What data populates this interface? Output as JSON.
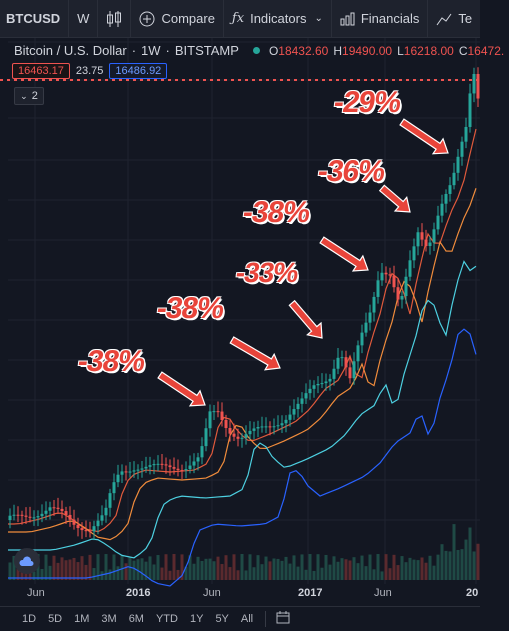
{
  "toolbar": {
    "symbol": "BTCUSD",
    "interval": "W",
    "compare": "Compare",
    "indicators": "Indicators",
    "financials": "Financials",
    "templates": "Te"
  },
  "legend": {
    "name": "Bitcoin / U.S. Dollar",
    "interval": "1W",
    "exchange": "BITSTAMP",
    "open_key": "O",
    "open": "18432.60",
    "high_key": "H",
    "high": "19490.00",
    "low_key": "L",
    "low": "16218.00",
    "close_key": "C",
    "close": "16472."
  },
  "quote": {
    "bid": "16463.17",
    "spread": "23.75",
    "ask": "16486.92"
  },
  "collapse_count": "2",
  "annotations": [
    "-38%",
    "-38%",
    "-33%",
    "-38%",
    "-36%",
    "-29%"
  ],
  "xaxis": [
    "Jun",
    "2016",
    "Jun",
    "2017",
    "Jun",
    "20"
  ],
  "ranges": [
    "1D",
    "5D",
    "1M",
    "3M",
    "6M",
    "YTD",
    "1Y",
    "5Y",
    "All"
  ],
  "colors": {
    "up": "#26a69a",
    "down": "#ef5350",
    "ma1": "#e05a3c",
    "ma2": "#f08c3c",
    "ma3": "#4dd0e1",
    "ma4": "#2962ff"
  },
  "chart_data": {
    "type": "line",
    "series": [],
    "note_free": true
  }
}
